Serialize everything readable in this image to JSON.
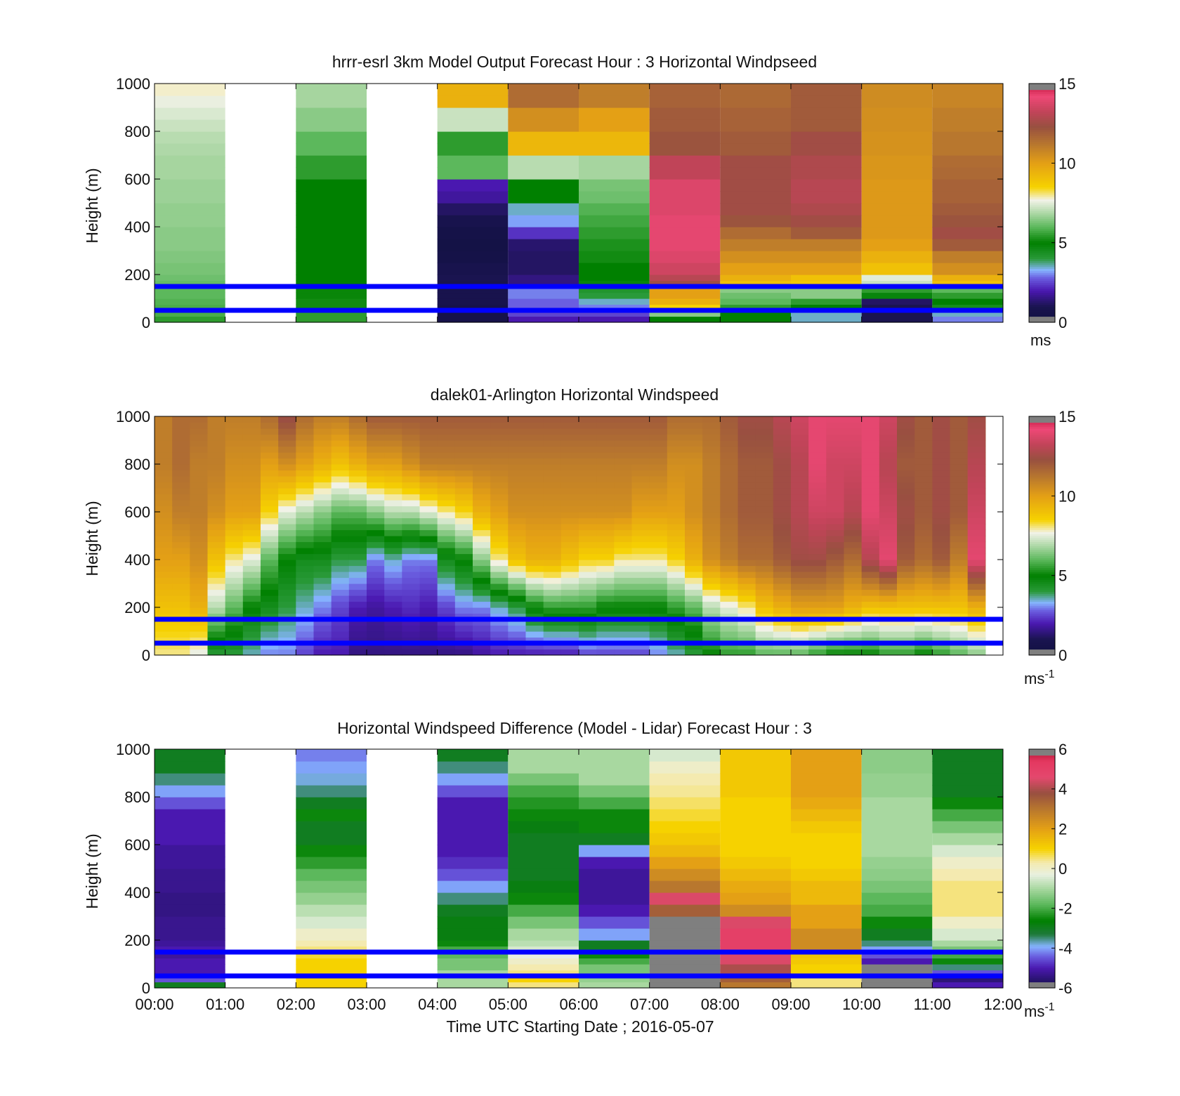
{
  "figure": {
    "xlabel": "Time UTC  Starting Date ; 2016-05-07"
  },
  "chart_data": [
    {
      "type": "heatmap",
      "title": "hrrr-esrl 3km Model Output   Forecast Hour : 3 Horizontal Windpseed",
      "ylabel": "Height (m)",
      "ylim": [
        0,
        1000
      ],
      "yticks": [
        "0",
        "200",
        "400",
        "600",
        "800",
        "1000"
      ],
      "x_ticks": [
        "00:00",
        "01:00",
        "02:00",
        "03:00",
        "04:00",
        "05:00",
        "06:00",
        "07:00",
        "08:00",
        "09:00",
        "10:00",
        "11:00",
        "12:00"
      ],
      "xlim_hours": [
        0,
        12
      ],
      "colorbar": {
        "min": 0,
        "max": 15,
        "ticks": [
          "0",
          "5",
          "10",
          "15"
        ],
        "unit": "ms",
        "unit_sup": "",
        "palette": "speed"
      },
      "reference_lines_m": [
        50,
        150
      ],
      "levels_m": [
        25,
        50,
        75,
        100,
        125,
        150,
        175,
        200,
        250,
        300,
        350,
        400,
        450,
        500,
        550,
        600,
        650,
        700,
        750,
        800,
        850,
        900,
        950,
        1000
      ],
      "columns": [
        {
          "t0": 0,
          "t1": 1,
          "values": [
            5.5,
            5.8,
            5.8,
            5.9,
            6.0,
            6.0,
            6.1,
            6.2,
            6.3,
            6.4,
            6.5,
            6.5,
            6.6,
            6.6,
            6.7,
            6.7,
            6.8,
            6.8,
            6.9,
            7.0,
            7.2,
            7.4,
            7.6,
            7.8
          ]
        },
        {
          "t0": 1,
          "t1": 2,
          "values": []
        },
        {
          "t0": 2,
          "t1": 3,
          "values": [
            5.5,
            5.5,
            5.2,
            5.2,
            5.1,
            5.1,
            5.0,
            5.0,
            5.0,
            5.0,
            5.0,
            5.0,
            5.0,
            5.0,
            5.0,
            5.0,
            5.5,
            5.5,
            6.0,
            6.0,
            6.5,
            6.5,
            6.8,
            6.8
          ]
        },
        {
          "t0": 3,
          "t1": 4,
          "values": []
        },
        {
          "t0": 4,
          "t1": 5,
          "values": [
            0.6,
            0.6,
            0.6,
            0.8,
            0.8,
            0.8,
            0.9,
            1.0,
            0.8,
            0.5,
            0.4,
            0.5,
            0.8,
            1.2,
            1.8,
            2.0,
            6.0,
            6.0,
            5.5,
            5.5,
            7.2,
            7.2,
            9.5,
            9.5
          ]
        },
        {
          "t0": 5,
          "t1": 6,
          "values": [
            2.0,
            2.5,
            2.8,
            2.8,
            3.0,
            3.0,
            1.5,
            1.5,
            1.2,
            1.2,
            1.3,
            2.3,
            3.2,
            3.5,
            5.0,
            5.0,
            7.0,
            7.0,
            9.3,
            9.3,
            10.5,
            10.5,
            11.5,
            11.5
          ]
        },
        {
          "t0": 6,
          "t1": 7,
          "values": [
            2.0,
            2.5,
            3.0,
            3.5,
            4.0,
            4.2,
            4.8,
            5.0,
            5.0,
            5.2,
            5.3,
            5.5,
            5.7,
            5.9,
            6.2,
            6.3,
            6.8,
            6.8,
            9.3,
            9.3,
            10.0,
            10.0,
            11.0,
            11.0
          ]
        },
        {
          "t0": 7,
          "t1": 8,
          "values": [
            5.0,
            6.5,
            8.5,
            9.5,
            10.0,
            10.0,
            12.5,
            13.0,
            13.5,
            13.8,
            14.0,
            14.0,
            14.0,
            13.8,
            13.8,
            13.8,
            13.2,
            13.2,
            12.2,
            12.2,
            12.0,
            12.0,
            11.8,
            11.8
          ]
        },
        {
          "t0": 8,
          "t1": 9,
          "values": [
            5.0,
            5.0,
            5.5,
            6.0,
            6.2,
            6.5,
            9.0,
            9.5,
            10.0,
            10.5,
            11.0,
            11.5,
            12.2,
            12.5,
            12.5,
            12.5,
            12.5,
            12.5,
            12.0,
            12.0,
            11.8,
            11.8,
            11.6,
            11.6
          ]
        },
        {
          "t0": 9,
          "t1": 10,
          "values": [
            3.5,
            3.5,
            5.0,
            5.5,
            6.5,
            6.5,
            8.8,
            9.0,
            10.0,
            10.5,
            11.0,
            12.0,
            12.5,
            12.8,
            13.0,
            13.0,
            12.8,
            12.8,
            12.5,
            12.5,
            12.0,
            12.0,
            12.0,
            12.0
          ]
        },
        {
          "t0": 10,
          "t1": 11,
          "values": [
            1.0,
            1.0,
            1.0,
            1.2,
            4.8,
            5.5,
            7.2,
            7.5,
            9.0,
            9.5,
            10.0,
            10.2,
            10.2,
            10.2,
            10.2,
            10.2,
            10.3,
            10.3,
            10.4,
            10.4,
            10.5,
            10.5,
            10.6,
            10.6
          ]
        },
        {
          "t0": 11,
          "t1": 12,
          "values": [
            3.0,
            3.5,
            4.5,
            5.0,
            5.5,
            6.0,
            9.0,
            9.5,
            10.5,
            11.0,
            12.0,
            12.5,
            12.2,
            12.0,
            11.8,
            11.8,
            11.6,
            11.5,
            11.2,
            11.2,
            11.0,
            11.0,
            10.8,
            10.8
          ]
        }
      ]
    },
    {
      "type": "heatmap",
      "title": "dalek01-Arlington  Horizontal Windspeed",
      "ylabel": "Height (m)",
      "ylim": [
        0,
        1000
      ],
      "yticks": [
        "0",
        "200",
        "400",
        "600",
        "800",
        "1000"
      ],
      "x_ticks": [
        "00:00",
        "01:00",
        "02:00",
        "03:00",
        "04:00",
        "05:00",
        "06:00",
        "07:00",
        "08:00",
        "09:00",
        "10:00",
        "11:00",
        "12:00"
      ],
      "xlim_hours": [
        0,
        12
      ],
      "colorbar": {
        "min": 0,
        "max": 15,
        "ticks": [
          "0",
          "5",
          "10",
          "15"
        ],
        "unit": "ms",
        "unit_sup": "-1",
        "palette": "speed"
      },
      "reference_lines_m": [
        50,
        150
      ],
      "data_end_hour": 11.75,
      "profile_step_hours": 0.25,
      "sampled_levels_m": [
        0,
        200,
        400,
        600,
        800,
        1000
      ],
      "profiles": [
        [
          8.0,
          9.0,
          10.0,
          10.5,
          11.0,
          11.0
        ],
        [
          8.0,
          9.0,
          10.0,
          11.0,
          11.5,
          11.5
        ],
        [
          7.5,
          9.5,
          10.5,
          11.0,
          11.0,
          11.5
        ],
        [
          4.0,
          7.0,
          9.0,
          10.5,
          11.0,
          11.0
        ],
        [
          4.0,
          6.0,
          8.0,
          10.0,
          10.5,
          11.0
        ],
        [
          3.5,
          5.0,
          7.5,
          10.0,
          10.5,
          11.0
        ],
        [
          3.0,
          4.5,
          6.0,
          8.5,
          10.0,
          11.5
        ],
        [
          3.0,
          4.0,
          5.0,
          7.5,
          10.5,
          12.5
        ],
        [
          2.5,
          3.5,
          4.5,
          7.0,
          10.0,
          11.5
        ],
        [
          2.0,
          3.0,
          4.5,
          6.5,
          9.5,
          11.0
        ],
        [
          2.0,
          2.5,
          4.0,
          6.0,
          9.0,
          11.0
        ],
        [
          1.5,
          2.0,
          4.0,
          6.0,
          9.5,
          11.5
        ],
        [
          1.5,
          1.8,
          3.0,
          6.5,
          10.0,
          12.0
        ],
        [
          1.5,
          2.0,
          3.5,
          7.0,
          10.0,
          12.0
        ],
        [
          1.5,
          2.2,
          3.0,
          7.0,
          10.5,
          12.0
        ],
        [
          1.5,
          2.0,
          3.0,
          7.5,
          11.0,
          12.0
        ],
        [
          1.5,
          2.5,
          4.5,
          8.0,
          11.0,
          12.0
        ],
        [
          1.5,
          3.0,
          5.0,
          8.5,
          11.0,
          12.0
        ],
        [
          1.8,
          3.0,
          6.5,
          9.5,
          11.0,
          12.0
        ],
        [
          2.0,
          3.5,
          8.0,
          10.0,
          11.0,
          12.0
        ],
        [
          2.0,
          4.0,
          9.0,
          10.5,
          11.0,
          12.0
        ],
        [
          2.0,
          5.0,
          9.5,
          10.5,
          11.0,
          12.0
        ],
        [
          2.0,
          5.5,
          9.5,
          10.5,
          11.0,
          12.0
        ],
        [
          2.0,
          5.5,
          9.0,
          10.5,
          11.0,
          12.0
        ],
        [
          2.5,
          5.5,
          8.5,
          10.5,
          11.0,
          12.0
        ],
        [
          2.5,
          5.0,
          8.5,
          10.5,
          11.0,
          12.0
        ],
        [
          2.5,
          5.0,
          8.0,
          10.5,
          11.0,
          12.0
        ],
        [
          2.5,
          5.0,
          8.0,
          10.0,
          11.0,
          12.0
        ],
        [
          3.0,
          5.0,
          8.0,
          10.0,
          11.0,
          12.0
        ],
        [
          3.5,
          5.5,
          8.5,
          10.0,
          10.5,
          11.5
        ],
        [
          4.0,
          6.0,
          9.5,
          10.5,
          10.5,
          11.5
        ],
        [
          5.0,
          7.0,
          10.5,
          11.0,
          11.0,
          11.5
        ],
        [
          5.5,
          7.5,
          11.0,
          11.5,
          11.5,
          12.0
        ],
        [
          5.5,
          8.0,
          11.5,
          12.0,
          12.0,
          12.5
        ],
        [
          6.0,
          9.0,
          11.5,
          12.0,
          12.0,
          12.5
        ],
        [
          6.0,
          9.5,
          12.0,
          12.5,
          12.5,
          13.0
        ],
        [
          6.0,
          10.0,
          12.5,
          13.0,
          13.0,
          13.5
        ],
        [
          5.5,
          10.0,
          12.5,
          13.5,
          14.0,
          14.0
        ],
        [
          5.0,
          10.0,
          12.0,
          13.5,
          13.5,
          14.0
        ],
        [
          5.0,
          9.5,
          11.5,
          13.0,
          13.5,
          14.0
        ],
        [
          5.0,
          9.0,
          13.0,
          14.0,
          14.0,
          14.0
        ],
        [
          5.5,
          9.0,
          14.0,
          13.5,
          13.0,
          13.5
        ],
        [
          5.5,
          9.0,
          12.0,
          12.5,
          12.0,
          12.5
        ],
        [
          5.0,
          9.0,
          11.5,
          12.0,
          12.0,
          12.0
        ],
        [
          5.5,
          9.0,
          12.0,
          12.5,
          12.5,
          12.5
        ],
        [
          6.0,
          9.0,
          11.0,
          12.0,
          12.0,
          12.0
        ],
        [
          6.5,
          9.5,
          14.0,
          13.5,
          13.0,
          12.5
        ],
        [
          6.5,
          9.0,
          12.0,
          12.5,
          12.0,
          12.0
        ]
      ]
    },
    {
      "type": "heatmap",
      "title": "Horizontal Windspeed Difference (Model - Lidar) Forecast Hour : 3",
      "ylabel": "Height (m)",
      "ylim": [
        0,
        1000
      ],
      "yticks": [
        "0",
        "200",
        "400",
        "600",
        "800",
        "1000"
      ],
      "x_ticks": [
        "00:00",
        "01:00",
        "02:00",
        "03:00",
        "04:00",
        "05:00",
        "06:00",
        "07:00",
        "08:00",
        "09:00",
        "10:00",
        "11:00",
        "12:00"
      ],
      "xlim_hours": [
        0,
        12
      ],
      "colorbar": {
        "min": -6,
        "max": 6,
        "ticks": [
          "-6",
          "-4",
          "-2",
          "0",
          "2",
          "4",
          "6"
        ],
        "unit": "ms",
        "unit_sup": "-1",
        "palette": "diff"
      },
      "reference_lines_m": [
        50,
        150
      ],
      "levels_m": [
        25,
        50,
        75,
        100,
        125,
        150,
        175,
        200,
        250,
        300,
        350,
        400,
        450,
        500,
        550,
        600,
        650,
        700,
        750,
        800,
        850,
        900,
        950,
        1000
      ],
      "columns": [
        {
          "t0": 0,
          "t1": 1,
          "values": [
            -3.0,
            -4.5,
            -5.0,
            -5.0,
            -5.0,
            -5.2,
            -5.0,
            -5.2,
            -5.3,
            -5.3,
            -5.4,
            -5.4,
            -5.3,
            -5.3,
            -5.2,
            -5.2,
            -5.0,
            -5.0,
            -5.0,
            -4.5,
            -4.0,
            -3.5,
            -3.0,
            -3.0
          ]
        },
        {
          "t0": 1,
          "t1": 2,
          "values": []
        },
        {
          "t0": 2,
          "t1": 3,
          "values": [
            1.0,
            1.0,
            1.0,
            1.0,
            1.0,
            0.8,
            0.5,
            0.3,
            0.0,
            -0.5,
            -0.8,
            -1.2,
            -1.5,
            -1.8,
            -2.2,
            -2.5,
            -3.0,
            -3.0,
            -2.5,
            -3.0,
            -3.5,
            -3.8,
            -4.0,
            -4.2
          ]
        },
        {
          "t0": 3,
          "t1": 4,
          "values": []
        },
        {
          "t0": 4,
          "t1": 5,
          "values": [
            -1.0,
            -1.0,
            -1.0,
            -1.5,
            -1.5,
            -1.8,
            -2.0,
            -2.5,
            -2.8,
            -2.8,
            -3.0,
            -3.5,
            -4.0,
            -4.5,
            -4.8,
            -5.0,
            -5.0,
            -5.0,
            -5.0,
            -5.0,
            -4.5,
            -4.0,
            -3.5,
            -3.0
          ]
        },
        {
          "t0": 5,
          "t1": 6,
          "values": [
            0.5,
            1.0,
            0.5,
            0.3,
            0.0,
            -0.3,
            -0.5,
            -0.8,
            -1.0,
            -1.5,
            -2.0,
            -2.5,
            -2.8,
            -3.0,
            -3.0,
            -3.0,
            -3.0,
            -2.8,
            -2.5,
            -2.3,
            -2.0,
            -1.5,
            -1.0,
            -1.0
          ]
        },
        {
          "t0": 6,
          "t1": 7,
          "values": [
            -1.0,
            -1.2,
            -1.5,
            -1.5,
            -2.0,
            -2.5,
            -3.0,
            -3.0,
            -4.0,
            -4.5,
            -5.0,
            -5.2,
            -5.2,
            -5.2,
            -5.0,
            -4.0,
            -3.0,
            -2.5,
            -2.5,
            -2.0,
            -1.5,
            -1.0,
            -1.0,
            -1.0
          ]
        },
        {
          "t0": 7,
          "t1": 8,
          "values": [
            -7.0,
            -7.0,
            -7.0,
            -7.0,
            -7.0,
            -7.0,
            -7.0,
            -7.0,
            -7.0,
            -7.0,
            3.5,
            4.5,
            3.0,
            2.5,
            2.0,
            1.5,
            1.2,
            1.0,
            0.8,
            0.6,
            0.4,
            0.3,
            0.0,
            -0.5
          ]
        },
        {
          "t0": 8,
          "t1": 9,
          "values": [
            3.0,
            3.5,
            4.0,
            4.0,
            4.5,
            4.5,
            5.0,
            5.0,
            5.0,
            4.5,
            2.5,
            2.0,
            1.8,
            1.5,
            1.2,
            1.0,
            1.0,
            1.0,
            1.0,
            1.0,
            1.2,
            1.2,
            1.2,
            1.2
          ]
        },
        {
          "t0": 9,
          "t1": 10,
          "values": [
            0.5,
            0.5,
            1.0,
            1.0,
            1.2,
            1.3,
            2.5,
            2.5,
            2.5,
            2.0,
            2.0,
            1.5,
            1.5,
            1.2,
            1.0,
            1.0,
            1.0,
            1.2,
            1.5,
            1.8,
            2.0,
            2.0,
            2.0,
            2.0
          ]
        },
        {
          "t0": 10,
          "t1": 11,
          "values": [
            -7.0,
            -7.0,
            -7.0,
            -7.0,
            -5.0,
            -4.5,
            -4.0,
            -3.5,
            -3.0,
            -2.5,
            -2.0,
            -1.8,
            -1.5,
            -1.3,
            -1.2,
            -1.0,
            -1.0,
            -1.0,
            -1.0,
            -1.0,
            -1.2,
            -1.2,
            -1.3,
            -1.3
          ]
        },
        {
          "t0": 11,
          "t1": 12,
          "values": [
            -5.0,
            -5.5,
            -4.5,
            -3.5,
            -2.5,
            -2.0,
            -1.5,
            -1.0,
            -0.5,
            0.0,
            0.5,
            0.5,
            0.5,
            0.3,
            0.0,
            -0.5,
            -1.0,
            -1.5,
            -2.0,
            -2.5,
            -3.0,
            -3.0,
            -3.0,
            -3.0
          ]
        }
      ]
    }
  ]
}
